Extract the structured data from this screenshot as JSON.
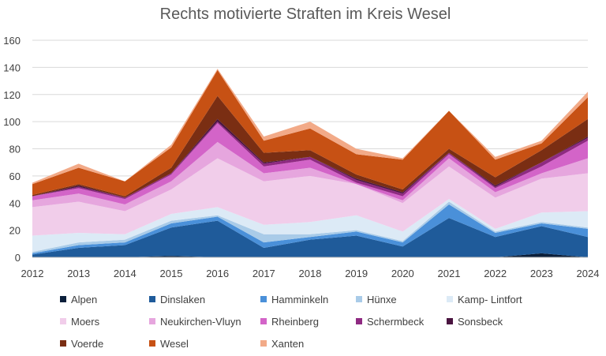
{
  "chart_data": {
    "type": "area",
    "stacked": true,
    "title": "Rechts motivierte Straften im Kreis Wesel",
    "xlabel": "",
    "ylabel": "",
    "ylim": [
      0,
      160
    ],
    "yticks": [
      0,
      20,
      40,
      60,
      80,
      100,
      120,
      140,
      160
    ],
    "grid": true,
    "legend": "bottom",
    "x": [
      "2012",
      "2013",
      "2014",
      "2015",
      "2016",
      "2017",
      "2018",
      "2019",
      "2020",
      "2021",
      "2022",
      "2023",
      "2024"
    ],
    "series": [
      {
        "name": "Alpen",
        "color": "#0b1f3a",
        "values": [
          0,
          0,
          0,
          1,
          0,
          0,
          0,
          0,
          0,
          0,
          0,
          3,
          0
        ]
      },
      {
        "name": "Dinslaken",
        "color": "#1f5b9a",
        "values": [
          2,
          7,
          9,
          21,
          27,
          7,
          13,
          16,
          8,
          29,
          15,
          20,
          15
        ]
      },
      {
        "name": "Hamminkeln",
        "color": "#4a90d9",
        "values": [
          1,
          2,
          2,
          3,
          3,
          4,
          2,
          3,
          3,
          10,
          3,
          2,
          6
        ]
      },
      {
        "name": "Hünxe",
        "color": "#a9cbe8",
        "values": [
          1,
          2,
          2,
          2,
          1,
          6,
          2,
          1,
          1,
          2,
          1,
          1,
          1
        ]
      },
      {
        "name": "Kamp- Lintfort",
        "color": "#dceaf6",
        "values": [
          12,
          7,
          4,
          5,
          6,
          7,
          9,
          11,
          7,
          2,
          2,
          7,
          12
        ]
      },
      {
        "name": "Moers",
        "color": "#f1cdea",
        "values": [
          21,
          23,
          17,
          18,
          36,
          32,
          34,
          23,
          21,
          24,
          23,
          25,
          28
        ]
      },
      {
        "name": "Neukirchen-Vluyn",
        "color": "#e6a6de",
        "values": [
          5,
          6,
          5,
          6,
          12,
          6,
          6,
          0,
          2,
          6,
          4,
          4,
          11
        ]
      },
      {
        "name": "Rheinberg",
        "color": "#d364c8",
        "values": [
          3,
          4,
          4,
          5,
          14,
          5,
          6,
          1,
          3,
          3,
          3,
          5,
          13
        ]
      },
      {
        "name": "Schermbeck",
        "color": "#8f2a82",
        "values": [
          0,
          1,
          1,
          1,
          1,
          2,
          2,
          2,
          2,
          1,
          1,
          3,
          2
        ]
      },
      {
        "name": "Sonsbeck",
        "color": "#4a1440",
        "values": [
          0,
          1,
          0,
          0,
          2,
          1,
          0,
          1,
          1,
          0,
          1,
          0,
          1
        ]
      },
      {
        "name": "Voerde",
        "color": "#7a2e13",
        "values": [
          1,
          1,
          1,
          4,
          17,
          7,
          5,
          3,
          2,
          3,
          6,
          9,
          13
        ]
      },
      {
        "name": "Wesel",
        "color": "#c75114",
        "values": [
          8,
          12,
          11,
          15,
          19,
          9,
          16,
          15,
          22,
          28,
          13,
          5,
          16
        ]
      },
      {
        "name": "Xanten",
        "color": "#f2aa88",
        "values": [
          1,
          3,
          0,
          2,
          1,
          3,
          5,
          4,
          1,
          0,
          2,
          2,
          4
        ]
      }
    ]
  }
}
